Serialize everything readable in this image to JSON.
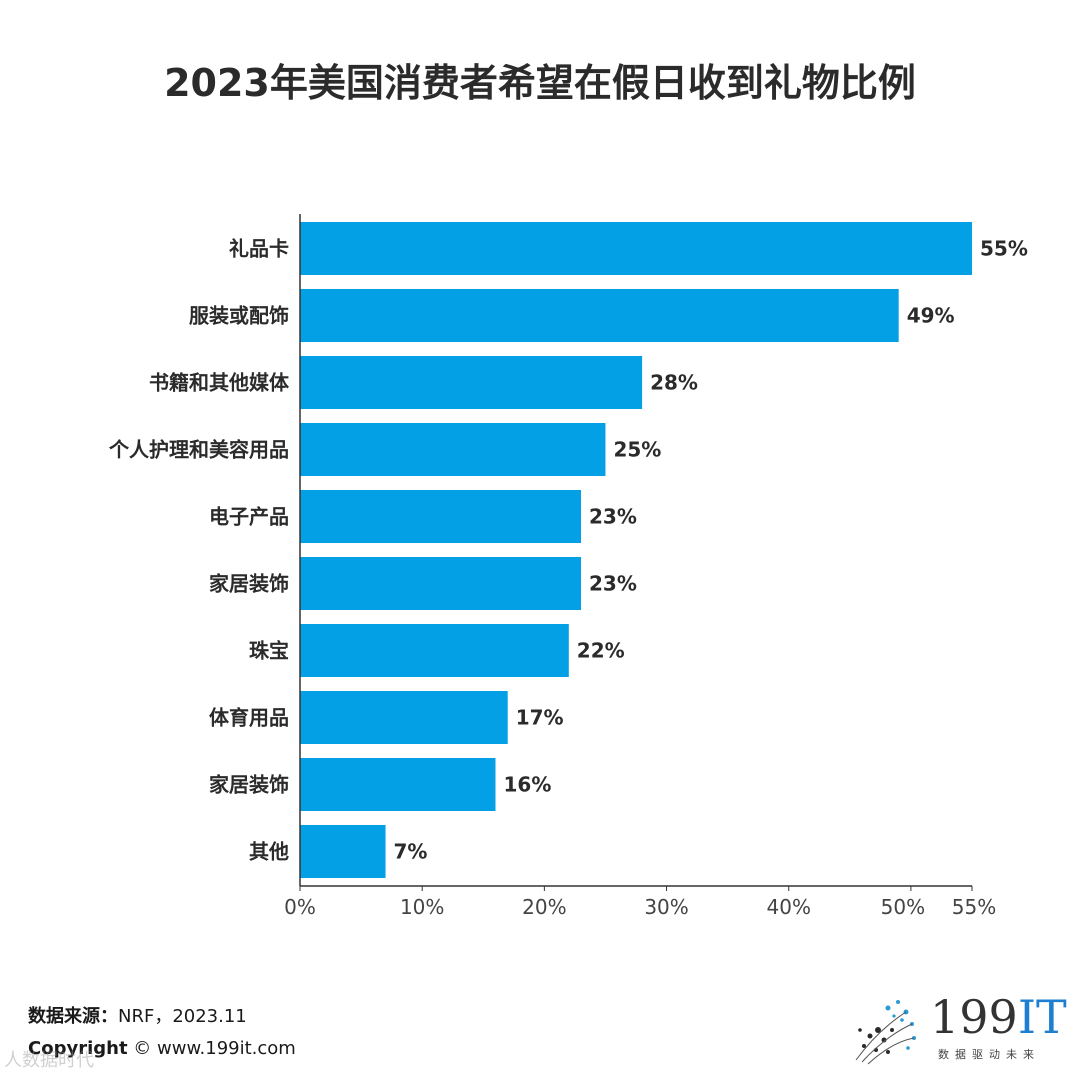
{
  "title": "2023年美国消费者希望在假日收到礼物比例",
  "footer": {
    "source_label": "数据来源：",
    "source_value": "NRF，2023.11",
    "copyright_label": "Copyright",
    "copyright_value": "©  www.199it.com",
    "watermark": "人数据时代"
  },
  "logo": {
    "brand_number": "199",
    "brand_letters": "IT",
    "tagline": "数据驱动未来"
  },
  "chart_data": {
    "type": "bar",
    "orientation": "horizontal",
    "title": "2023年美国消费者希望在假日收到礼物比例",
    "categories": [
      "礼品卡",
      "服装或配饰",
      "书籍和其他媒体",
      "个人护理和美容用品",
      "电子产品",
      "家居装饰",
      "珠宝",
      "体育用品",
      "家居装饰",
      "其他"
    ],
    "values": [
      55,
      49,
      28,
      25,
      23,
      23,
      22,
      17,
      16,
      7
    ],
    "value_labels": [
      "55%",
      "49%",
      "28%",
      "25%",
      "23%",
      "23%",
      "22%",
      "17%",
      "16%",
      "7%"
    ],
    "xlim": [
      0,
      55
    ],
    "xticks": [
      0,
      10,
      20,
      30,
      40,
      50,
      55
    ],
    "xtick_labels": [
      "0%",
      "10%",
      "20%",
      "30%",
      "40%",
      "50%",
      "55%"
    ],
    "bar_color": "#03a0e6",
    "grid": false
  }
}
